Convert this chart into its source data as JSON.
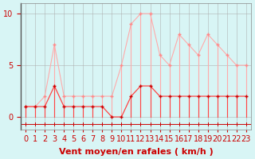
{
  "bg_color": "#d8f5f5",
  "grid_color": "#aaaaaa",
  "line_color_mean": "#ff4444",
  "line_color_gust": "#ffaaaa",
  "marker_color_mean": "#cc0000",
  "marker_color_gust": "#ff8888",
  "xlabel": "Vent moyen/en rafales ( km/h )",
  "ylabel_ticks": [
    0,
    5,
    10
  ],
  "xlim": [
    -0.5,
    23.5
  ],
  "ylim": [
    -1.2,
    11
  ],
  "hours": [
    0,
    1,
    2,
    3,
    4,
    5,
    6,
    7,
    8,
    9,
    10,
    11,
    12,
    13,
    14,
    15,
    16,
    17,
    18,
    19,
    20,
    21,
    22,
    23
  ],
  "mean_wind": [
    1,
    1,
    1,
    3,
    1,
    1,
    1,
    1,
    1,
    0,
    0,
    2,
    3,
    3,
    2,
    2,
    2,
    2,
    2,
    2,
    2,
    2,
    2,
    2
  ],
  "gust_wind": [
    1,
    1,
    2,
    7,
    2,
    2,
    2,
    2,
    2,
    2,
    5,
    9,
    10,
    10,
    6,
    5,
    8,
    7,
    6,
    8,
    7,
    6,
    5,
    5
  ],
  "xtick_labels": [
    "0",
    "1",
    "2",
    "3",
    "4",
    "5",
    "6",
    "7",
    "8",
    "9",
    "10",
    "11",
    "12",
    "13",
    "14",
    "15",
    "16",
    "17",
    "18",
    "19",
    "20",
    "21",
    "22",
    "23"
  ],
  "tick_fontsize": 7,
  "xlabel_fontsize": 8,
  "ytick_fontsize": 7,
  "title": ""
}
